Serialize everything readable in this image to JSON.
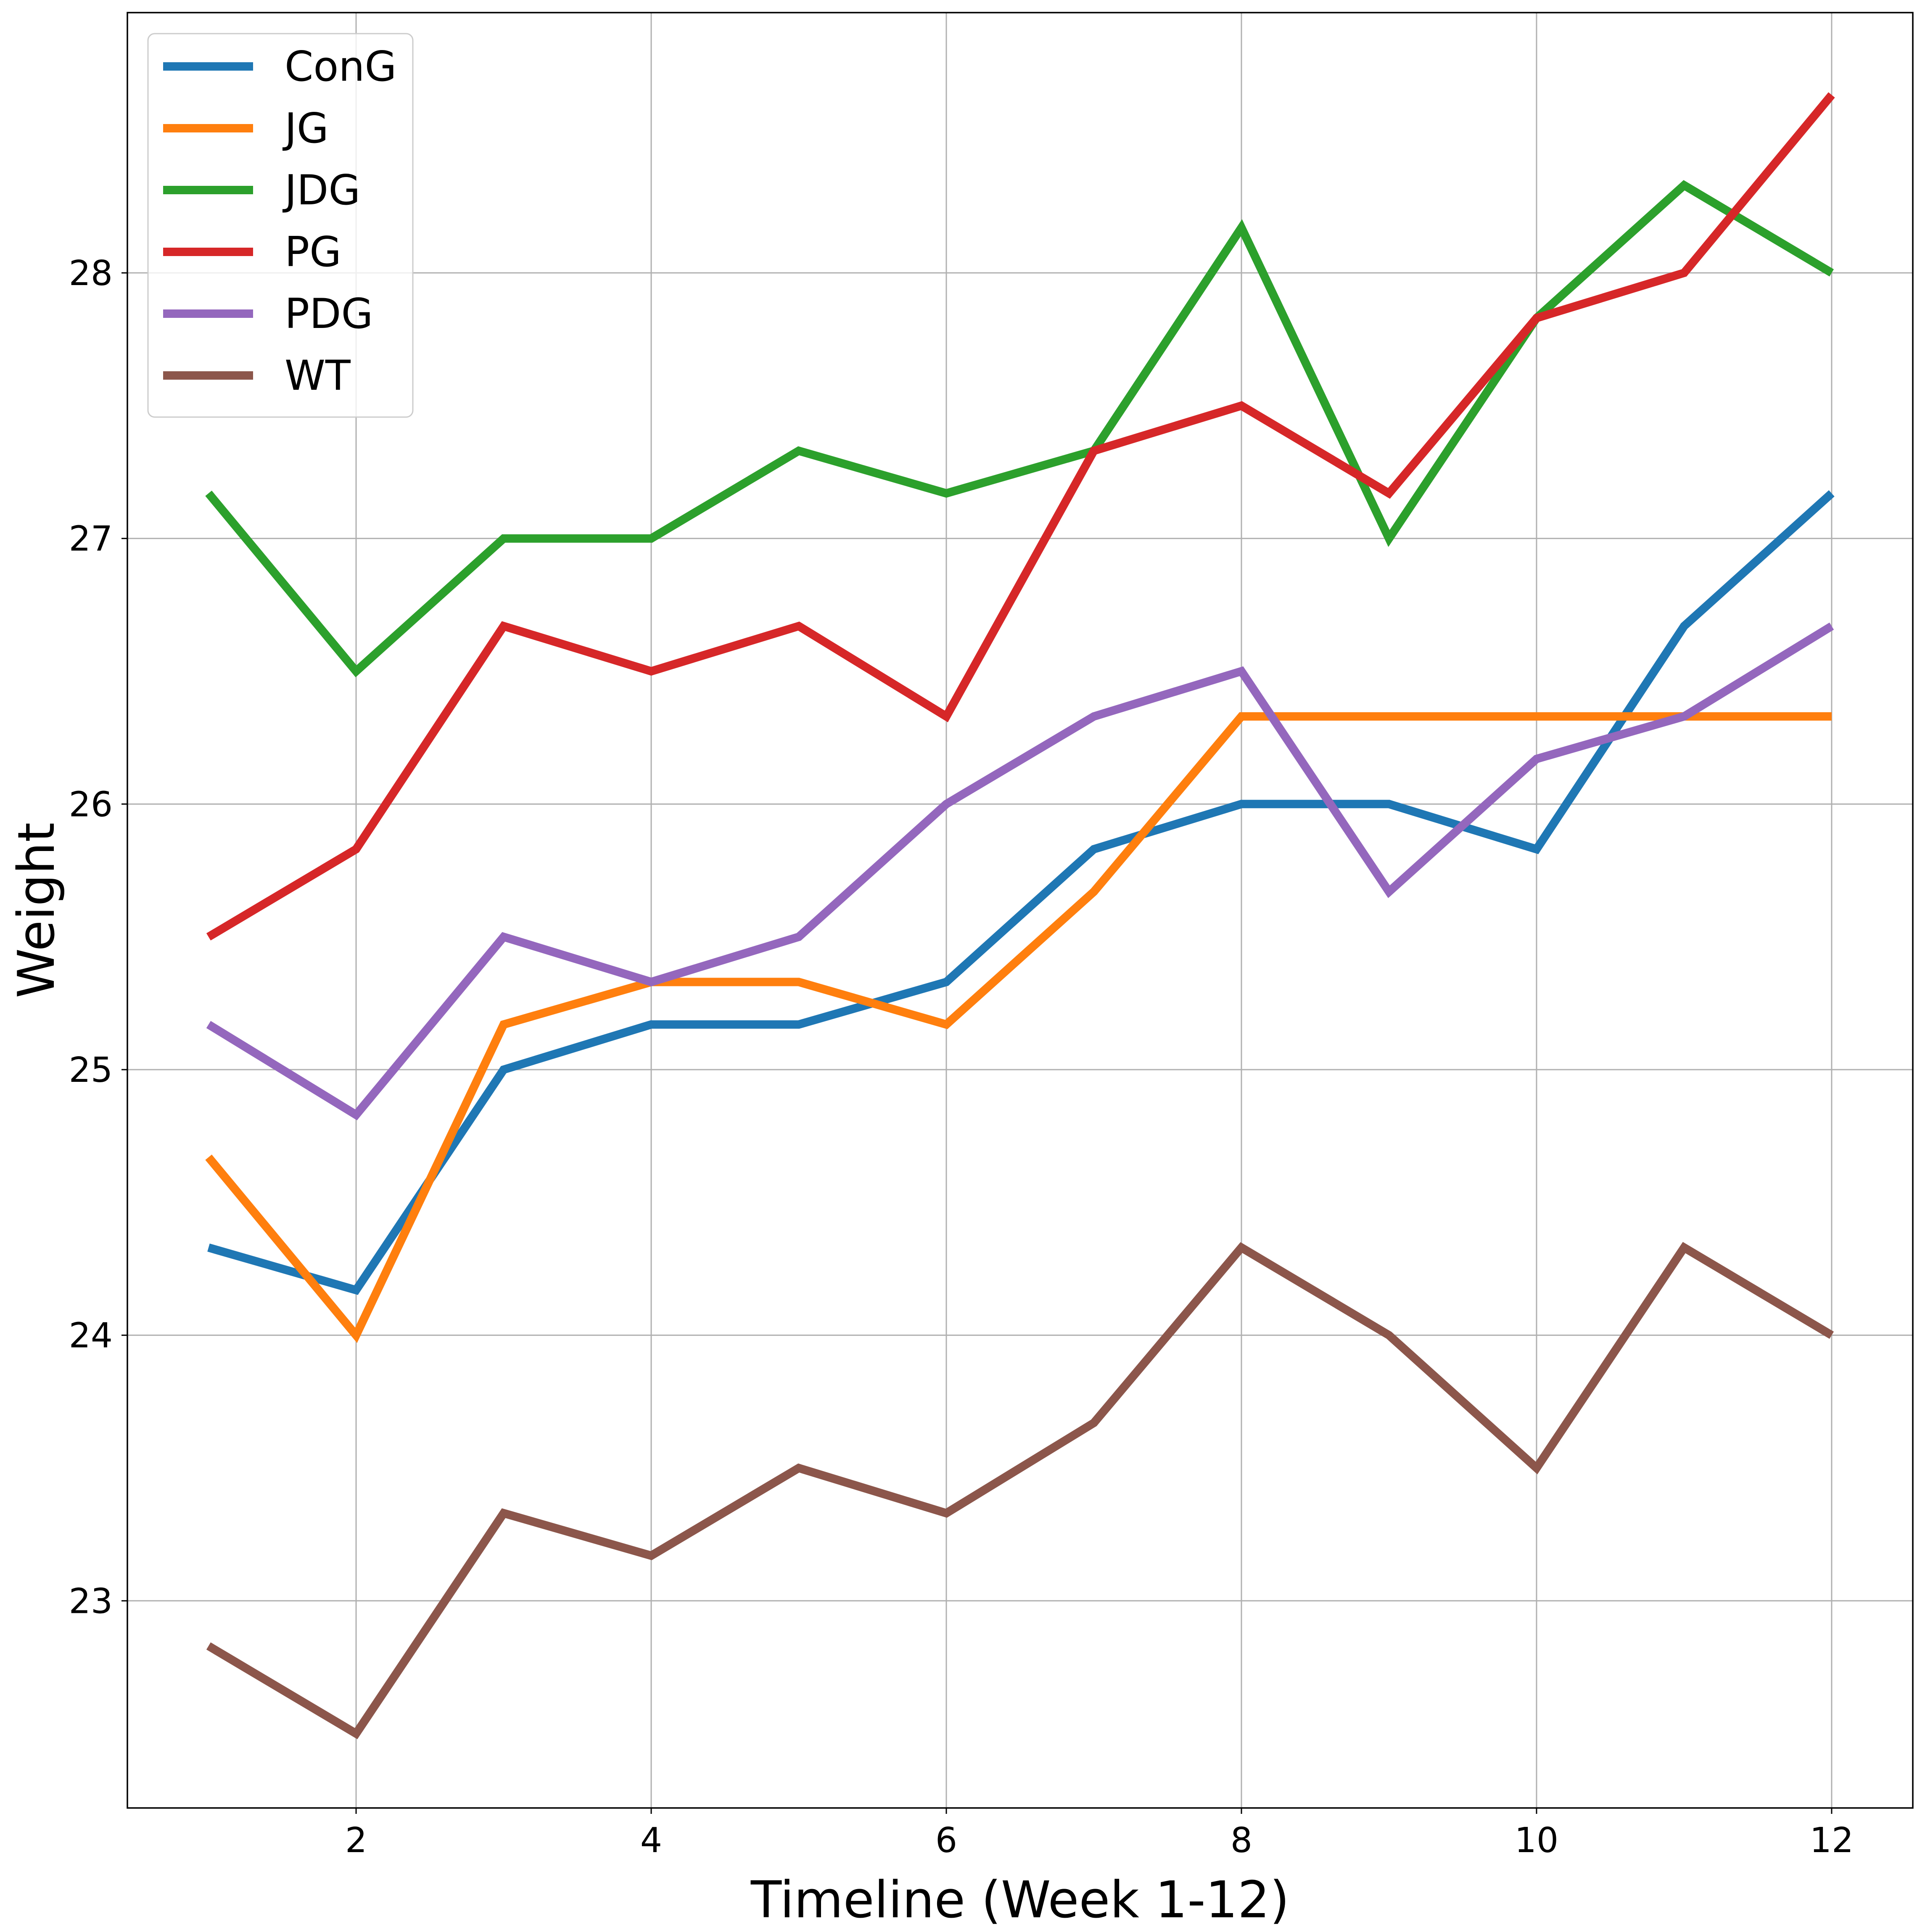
{
  "chart_data": {
    "type": "line",
    "title": "",
    "xlabel": "Timeline (Week 1-12)",
    "ylabel": "Weight",
    "x": [
      1,
      2,
      3,
      4,
      5,
      6,
      7,
      8,
      9,
      10,
      11,
      12
    ],
    "xlim": [
      0.45,
      12.55
    ],
    "ylim": [
      22.22,
      28.98
    ],
    "xticks": [
      2,
      4,
      6,
      8,
      10,
      12
    ],
    "yticks": [
      23,
      24,
      25,
      26,
      27,
      28
    ],
    "grid": true,
    "legend_position": "upper-left",
    "series": [
      {
        "name": "ConG",
        "color": "#1f77b4",
        "values": [
          24.33,
          24.17,
          25.0,
          25.17,
          25.17,
          25.33,
          25.83,
          26.0,
          26.0,
          25.83,
          26.67,
          27.17
        ]
      },
      {
        "name": "JG",
        "color": "#ff7f0e",
        "values": [
          24.67,
          24.0,
          25.17,
          25.33,
          25.33,
          25.17,
          25.67,
          26.33,
          26.33,
          26.33,
          26.33,
          26.33
        ]
      },
      {
        "name": "JDG",
        "color": "#2ca02c",
        "values": [
          27.17,
          26.5,
          27.0,
          27.0,
          27.33,
          27.17,
          27.33,
          28.17,
          27.0,
          27.83,
          28.33,
          28.0
        ]
      },
      {
        "name": "PG",
        "color": "#d62728",
        "values": [
          25.5,
          25.83,
          26.67,
          26.5,
          26.67,
          26.33,
          27.33,
          27.5,
          27.17,
          27.83,
          28.0,
          28.67
        ]
      },
      {
        "name": "PDG",
        "color": "#9467bd",
        "values": [
          25.17,
          24.83,
          25.5,
          25.33,
          25.5,
          26.0,
          26.33,
          26.5,
          25.67,
          26.17,
          26.33,
          26.67
        ]
      },
      {
        "name": "WT",
        "color": "#8c564b",
        "values": [
          22.83,
          22.5,
          23.33,
          23.17,
          23.5,
          23.33,
          23.67,
          24.33,
          24.0,
          23.5,
          24.33,
          24.0
        ]
      }
    ]
  }
}
